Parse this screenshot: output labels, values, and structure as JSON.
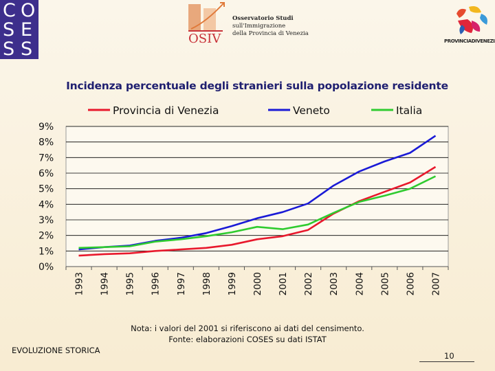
{
  "logos": {
    "coses": [
      "C",
      "O",
      "S",
      "E",
      "S",
      "S"
    ],
    "osiv": {
      "letters": "OSIV",
      "lines": [
        "Osservatorio Studi",
        "sull'Immigrazione",
        "della Provincia di Venezia"
      ]
    },
    "provincia": "PROVINCIADIVENEZIA"
  },
  "slide": {
    "title": "Incidenza percentuale degli stranieri sulla popolazione residente",
    "note": "Nota: i valori del 2001 si riferiscono ai dati del censimento.",
    "source": "Fonte: elaborazioni COSES su dati ISTAT",
    "footer_label": "EVOLUZIONE STORICA",
    "page_number": "10"
  },
  "chart_data": {
    "type": "line",
    "title": "Incidenza percentuale degli stranieri sulla popolazione residente",
    "xlabel": "",
    "ylabel": "",
    "ylim": [
      0,
      9
    ],
    "grid": true,
    "legend_position": "top",
    "y_tick_labels": [
      "0%",
      "1%",
      "2%",
      "3%",
      "4%",
      "5%",
      "6%",
      "7%",
      "8%",
      "9%"
    ],
    "categories": [
      "1993",
      "1994",
      "1995",
      "1996",
      "1997",
      "1998",
      "1999",
      "2000",
      "2001",
      "2002",
      "2003",
      "2004",
      "2005",
      "2006",
      "2007"
    ],
    "series": [
      {
        "name": "Provincia di Venezia",
        "color": "#e8182c",
        "values": [
          0.7,
          0.8,
          0.85,
          1.0,
          1.1,
          1.2,
          1.4,
          1.75,
          1.95,
          2.35,
          3.4,
          4.2,
          4.8,
          5.4,
          6.4
        ]
      },
      {
        "name": "Veneto",
        "color": "#1a1ad6",
        "values": [
          1.1,
          1.25,
          1.35,
          1.65,
          1.85,
          2.15,
          2.6,
          3.1,
          3.5,
          4.05,
          5.2,
          6.1,
          6.75,
          7.3,
          8.4
        ]
      },
      {
        "name": "Italia",
        "color": "#2fcb2f",
        "values": [
          1.2,
          1.25,
          1.3,
          1.6,
          1.75,
          1.95,
          2.2,
          2.55,
          2.4,
          2.7,
          3.45,
          4.15,
          4.55,
          5.0,
          5.8
        ]
      }
    ]
  }
}
